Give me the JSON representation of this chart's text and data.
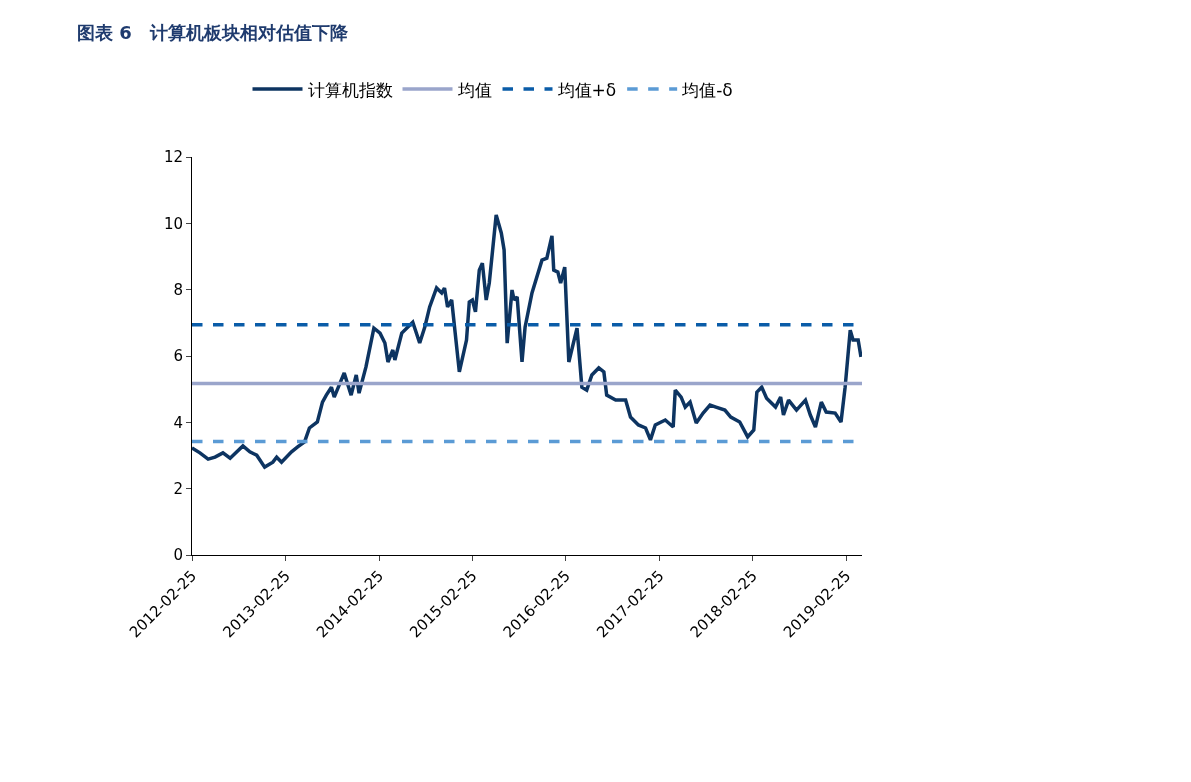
{
  "chart_data": {
    "type": "line",
    "title": "图表 6　计算机板块相对估值下降",
    "x": [
      "2012-02-25",
      "2012-03-27",
      "2012-04-28",
      "2012-05-25",
      "2012-06-25",
      "2012-07-23",
      "2012-09-11",
      "2012-10-08",
      "2012-11-04",
      "2012-12-05",
      "2013-01-06",
      "2013-01-21",
      "2013-02-09",
      "2013-03-20",
      "2013-04-13",
      "2013-05-10",
      "2013-05-29",
      "2013-06-29",
      "2013-07-19",
      "2013-08-03",
      "2013-08-23",
      "2013-09-03",
      "2013-10-12",
      "2013-11-08",
      "2013-11-28",
      "2013-12-09",
      "2014-01-05",
      "2014-02-05",
      "2014-03-01",
      "2014-03-20",
      "2014-04-01",
      "2014-04-20",
      "2014-04-28",
      "2014-05-25",
      "2014-07-07",
      "2014-08-03",
      "2014-08-23",
      "2014-09-11",
      "2014-10-08",
      "2014-10-28",
      "2014-11-08",
      "2014-11-20",
      "2014-12-06",
      "2015-01-05",
      "2015-02-02",
      "2015-02-13",
      "2015-02-25",
      "2015-03-09",
      "2015-03-24",
      "2015-04-05",
      "2015-04-20",
      "2015-05-02",
      "2015-05-29",
      "2015-06-18",
      "2015-06-29",
      "2015-07-11",
      "2015-07-30",
      "2015-08-07",
      "2015-08-19",
      "2015-09-07",
      "2015-09-19",
      "2015-10-16",
      "2015-11-24",
      "2015-12-13",
      "2016-01-02",
      "2016-01-09",
      "2016-01-25",
      "2016-02-05",
      "2016-02-21",
      "2016-03-08",
      "2016-04-09",
      "2016-04-28",
      "2016-05-17",
      "2016-06-06",
      "2016-07-03",
      "2016-07-23",
      "2016-08-03",
      "2016-09-07",
      "2016-10-16",
      "2016-11-04",
      "2016-12-05",
      "2017-01-02",
      "2017-01-21",
      "2017-02-09",
      "2017-03-20",
      "2017-04-20",
      "2017-04-28",
      "2017-05-21",
      "2017-06-06",
      "2017-06-25",
      "2017-07-19",
      "2017-08-15",
      "2017-09-11",
      "2017-10-04",
      "2017-11-08",
      "2017-12-01",
      "2018-01-05",
      "2018-02-05",
      "2018-03-01",
      "2018-03-13",
      "2018-04-01",
      "2018-04-20",
      "2018-05-25",
      "2018-06-14",
      "2018-06-25",
      "2018-07-15",
      "2018-08-15",
      "2018-09-19",
      "2018-10-08",
      "2018-10-28",
      "2018-11-20",
      "2018-12-09",
      "2019-01-13",
      "2019-02-05",
      "2019-02-21",
      "2019-03-13",
      "2019-03-24",
      "2019-04-13",
      "2019-04-24"
    ],
    "series": [
      {
        "name": "计算机指数",
        "color": "#0d3461",
        "values": [
          3.23,
          3.08,
          2.89,
          2.95,
          3.08,
          2.92,
          3.29,
          3.11,
          3.01,
          2.65,
          2.8,
          2.95,
          2.8,
          3.11,
          3.26,
          3.41,
          3.83,
          4.01,
          4.61,
          4.82,
          5.06,
          4.76,
          5.49,
          4.82,
          5.43,
          4.88,
          5.67,
          6.84,
          6.69,
          6.39,
          5.82,
          6.18,
          5.88,
          6.69,
          7.02,
          6.39,
          6.87,
          7.48,
          8.05,
          7.9,
          8.05,
          7.48,
          7.69,
          5.52,
          6.48,
          7.63,
          7.69,
          7.33,
          8.59,
          8.8,
          7.69,
          8.2,
          10.25,
          9.71,
          9.2,
          6.39,
          7.99,
          7.69,
          7.78,
          5.82,
          6.87,
          7.9,
          8.89,
          8.95,
          9.62,
          8.59,
          8.53,
          8.2,
          8.68,
          5.82,
          6.84,
          5.06,
          4.97,
          5.43,
          5.64,
          5.52,
          4.82,
          4.67,
          4.67,
          4.16,
          3.92,
          3.83,
          3.47,
          3.92,
          4.07,
          3.86,
          4.97,
          4.76,
          4.46,
          4.61,
          3.98,
          4.28,
          4.52,
          4.46,
          4.37,
          4.16,
          4.01,
          3.56,
          3.77,
          4.91,
          5.06,
          4.73,
          4.46,
          4.76,
          4.22,
          4.67,
          4.37,
          4.67,
          4.22,
          3.86,
          4.61,
          4.31,
          4.28,
          4.01,
          5.06,
          6.78,
          6.48,
          6.48,
          5.97
        ]
      }
    ],
    "ref_lines": [
      {
        "axis": "y",
        "value": 5.17,
        "label": "均值",
        "color": "#9aa5cb",
        "line_style": "solid"
      },
      {
        "axis": "y",
        "value": 6.94,
        "label": "均值+δ",
        "color": "#0a5ca8",
        "line_style": "dashed"
      },
      {
        "axis": "y",
        "value": 3.42,
        "label": "均值-δ",
        "color": "#5b9bd5",
        "line_style": "dashed"
      }
    ],
    "xlim": [
      "2012-02-25",
      "2019-04-28"
    ],
    "xticks": [
      "2012-02-25",
      "2013-02-25",
      "2014-02-25",
      "2015-02-25",
      "2016-02-25",
      "2017-02-25",
      "2018-02-25",
      "2019-02-25"
    ],
    "ylim": [
      0,
      12
    ],
    "yticks": [
      0,
      2,
      4,
      6,
      8,
      10,
      12
    ],
    "legend": "top",
    "marker": "none",
    "line_style": "solid"
  }
}
